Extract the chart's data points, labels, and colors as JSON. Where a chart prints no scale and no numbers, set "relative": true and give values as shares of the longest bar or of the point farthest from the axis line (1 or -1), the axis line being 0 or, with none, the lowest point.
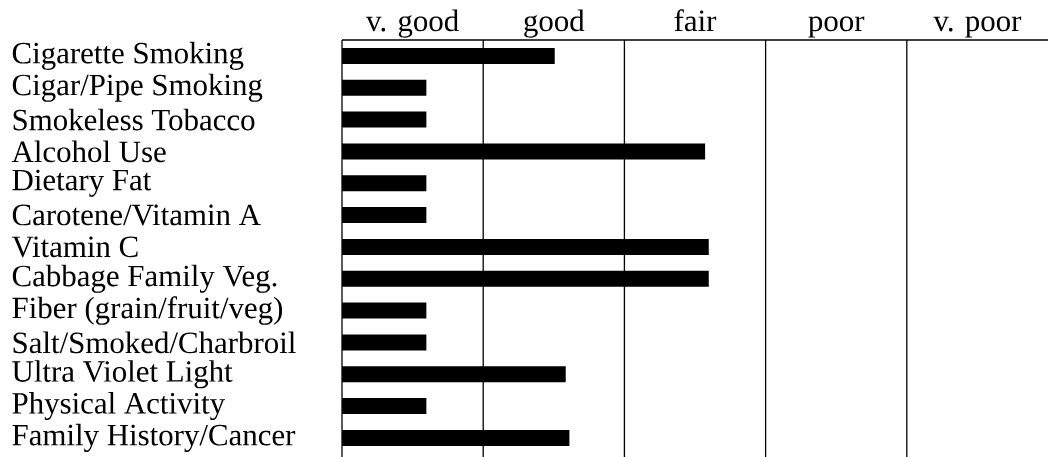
{
  "chart_data": {
    "type": "bar",
    "orientation": "horizontal",
    "relative": true,
    "color": "#000000",
    "categories": [
      "Cigarette Smoking",
      "Cigar/Pipe Smoking",
      "Smokeless Tobacco",
      "Alcohol Use",
      "Dietary Fat",
      "Carotene/Vitamin A",
      "Vitamin C",
      "Cabbage Family Veg.",
      "Fiber (grain/fruit/veg)",
      "Salt/Smoked/Charbroil",
      "Ultra Violet Light",
      "Physical Activity",
      "Family History/Cancer"
    ],
    "values": [
      0.58,
      0.23,
      0.23,
      0.99,
      0.23,
      0.23,
      1,
      1,
      0.23,
      0.23,
      0.61,
      0.23,
      0.62
    ],
    "ref_lines": [
      {
        "axis": "x",
        "value": 0.385,
        "color": "#000000"
      },
      {
        "axis": "x",
        "value": 0.77,
        "color": "#000000"
      },
      {
        "axis": "x",
        "value": 1.155,
        "color": "#000000"
      },
      {
        "axis": "x",
        "value": 1.54,
        "color": "#000000"
      }
    ],
    "annotations": [
      "v. good",
      "good",
      "fair",
      "poor",
      "v. poor"
    ]
  }
}
